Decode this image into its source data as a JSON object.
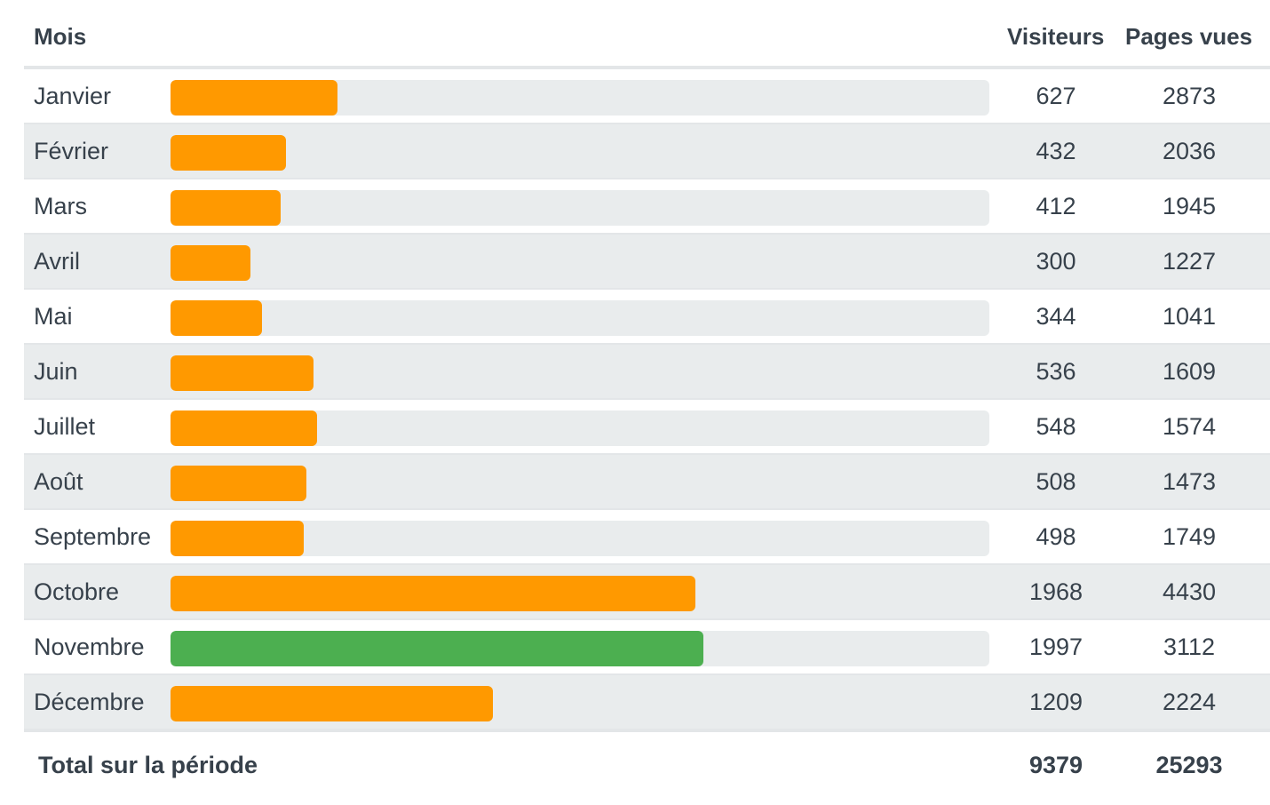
{
  "header": {
    "month": "Mois",
    "visitors": "Visiteurs",
    "pageviews": "Pages vues"
  },
  "colors": {
    "bar": "#ff9900",
    "highlight": "#4caf50",
    "track": "#e9eced",
    "text": "#37414b"
  },
  "chart_data": {
    "type": "table",
    "columns": [
      "Mois",
      "Visiteurs",
      "Pages vues"
    ],
    "bar_series": "Visiteurs",
    "bar_max": 3070,
    "highlight_index": 10,
    "rows": [
      {
        "month": "Janvier",
        "visitors": 627,
        "pageviews": 2873
      },
      {
        "month": "Février",
        "visitors": 432,
        "pageviews": 2036
      },
      {
        "month": "Mars",
        "visitors": 412,
        "pageviews": 1945
      },
      {
        "month": "Avril",
        "visitors": 300,
        "pageviews": 1227
      },
      {
        "month": "Mai",
        "visitors": 344,
        "pageviews": 1041
      },
      {
        "month": "Juin",
        "visitors": 536,
        "pageviews": 1609
      },
      {
        "month": "Juillet",
        "visitors": 548,
        "pageviews": 1574
      },
      {
        "month": "Août",
        "visitors": 508,
        "pageviews": 1473
      },
      {
        "month": "Septembre",
        "visitors": 498,
        "pageviews": 1749
      },
      {
        "month": "Octobre",
        "visitors": 1968,
        "pageviews": 4430
      },
      {
        "month": "Novembre",
        "visitors": 1997,
        "pageviews": 3112
      },
      {
        "month": "Décembre",
        "visitors": 1209,
        "pageviews": 2224
      }
    ],
    "total": {
      "label": "Total sur la période",
      "visitors": 9379,
      "pageviews": 25293
    }
  }
}
